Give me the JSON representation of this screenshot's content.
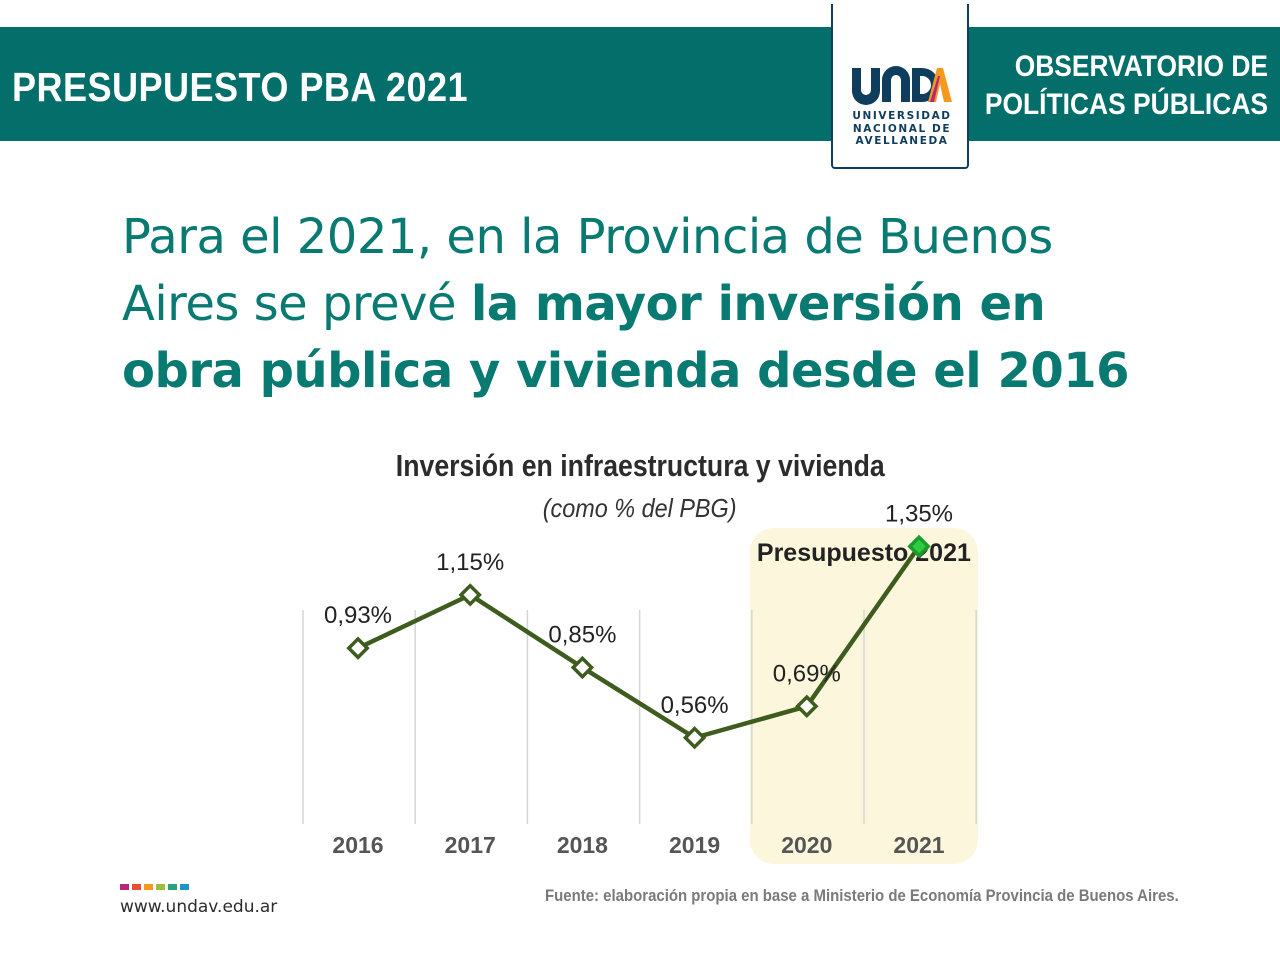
{
  "header": {
    "title": "PRESUPUESTO PBA 2021",
    "observatory_line1": "OBSERVATORIO DE",
    "observatory_line2": "POLÍTICAS PÚBLICAS"
  },
  "logo": {
    "mark": "UNDAV",
    "line1": "UNIVERSIDAD",
    "line2": "NACIONAL DE",
    "line3": "AVELLANEDA",
    "color": "#0f3d5e"
  },
  "headline": {
    "line1": "Para el 2021, en la Provincia de Buenos",
    "line2_regular": "Aires se prevé ",
    "line2_bold": "la mayor inversión en",
    "line3_bold": "obra pública y vivienda desde el 2016"
  },
  "footer": {
    "website": "www.undav.edu.ar",
    "source": "Fuente: elaboración propia en base a Ministerio de Economía Provincia de Buenos Aires.",
    "color_squares": [
      "#b5287a",
      "#e94e35",
      "#f39a1e",
      "#9bbe3c",
      "#2aa37c",
      "#1e95c4"
    ]
  },
  "colors": {
    "brand_teal": "#046e6a",
    "headline_teal": "#087a72",
    "line": "#3e5c1e",
    "highlight_point": "#2ecc40",
    "budget_bg": "#fbf6dc"
  },
  "chart_data": {
    "type": "line",
    "title": "Inversión en infraestructura y vivienda",
    "subtitle": "(como % del PBG)",
    "categories": [
      "2016",
      "2017",
      "2018",
      "2019",
      "2020",
      "2021"
    ],
    "values": [
      0.93,
      1.15,
      0.85,
      0.56,
      0.69,
      1.35
    ],
    "value_labels": [
      "0,93%",
      "1,15%",
      "0,85%",
      "0,56%",
      "0,69%",
      "1,35%"
    ],
    "highlight": {
      "label": "Presupuesto 2021",
      "categories": [
        "2020",
        "2021"
      ]
    },
    "grid": "vertical",
    "ylim": [
      0,
      1.55
    ]
  }
}
